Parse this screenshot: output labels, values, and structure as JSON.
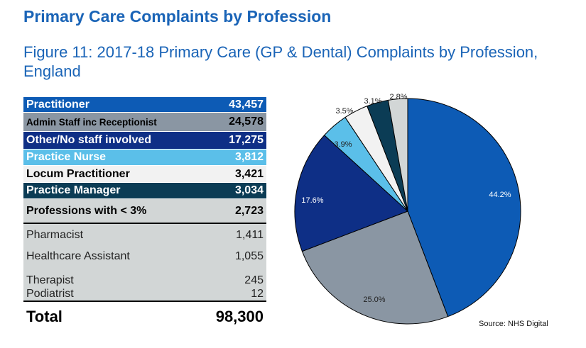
{
  "header": {
    "title": "Primary Care Complaints by Profession",
    "figure_title": "Figure 11: 2017-18 Primary Care (GP & Dental) Complaints by Profession, England"
  },
  "table": {
    "rows": [
      {
        "label": "Practitioner",
        "value": "43,457"
      },
      {
        "label": "Admin Staff inc Receptionist",
        "value": "24,578"
      },
      {
        "label": "Other/No staff involved",
        "value": "17,275"
      },
      {
        "label": "Practice Nurse",
        "value": "3,812"
      },
      {
        "label": "Locum Practitioner",
        "value": "3,421"
      },
      {
        "label": "Practice Manager",
        "value": "3,034"
      },
      {
        "label": "Professions with < 3%",
        "value": "2,723"
      },
      {
        "label": "Pharmacist",
        "value": "1,411"
      },
      {
        "label": "Healthcare Assistant",
        "value": "1,055"
      },
      {
        "label": "Therapist",
        "value": "245"
      },
      {
        "label": "Podiatrist",
        "value": "12"
      }
    ],
    "total_label": "Total",
    "total_value": "98,300"
  },
  "colors": {
    "practitioner": "#0d5bb5",
    "admin": "#8a96a3",
    "other": "#0e2f86",
    "nurse": "#5bbfe9",
    "locum": "#f2f2f2",
    "manager": "#0b3c55",
    "lt3": "#d2d6d6"
  },
  "chart_data": {
    "type": "pie",
    "categories": [
      "Practitioner",
      "Admin Staff inc Receptionist",
      "Other/No staff involved",
      "Practice Nurse",
      "Locum Practitioner",
      "Practice Manager",
      "Professions with < 3%"
    ],
    "values": [
      43457,
      24578,
      17275,
      3812,
      3421,
      3034,
      2723
    ],
    "labels": [
      "44.2%",
      "25.0%",
      "17.6%",
      "3.9%",
      "3.5%",
      "3.1%",
      "2.8%"
    ],
    "colors": [
      "#0d5bb5",
      "#8a96a3",
      "#0e2f86",
      "#5bbfe9",
      "#f2f2f2",
      "#0b3c55",
      "#d2d6d6"
    ],
    "start": "12 o'clock",
    "direction": "clockwise"
  },
  "footer": {
    "source": "Source: NHS Digital"
  }
}
